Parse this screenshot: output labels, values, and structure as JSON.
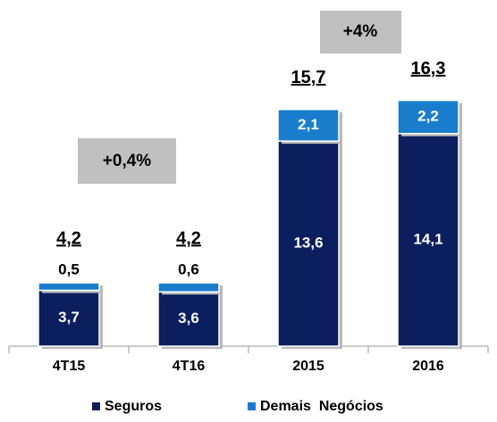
{
  "chart_data": {
    "type": "stacked_bar",
    "categories": [
      "4T15",
      "4T16",
      "2015",
      "2016"
    ],
    "series": [
      {
        "name": "Seguros",
        "color": "#0b1f5e",
        "values": [
          3.7,
          3.6,
          13.6,
          14.1
        ],
        "value_labels": [
          "3,7",
          "3,6",
          "13,6",
          "14,1"
        ]
      },
      {
        "name": "Demais  Negócios",
        "color": "#1a7dcc",
        "values": [
          0.5,
          0.6,
          2.1,
          2.2
        ],
        "value_labels": [
          "0,5",
          "0,6",
          "2,1",
          "2,2"
        ]
      }
    ],
    "totals": [
      4.2,
      4.2,
      15.7,
      16.3
    ],
    "total_labels": [
      "4,2",
      "4,2",
      "15,7",
      "16,3"
    ],
    "annotations": [
      "+0,4%",
      "+4%"
    ]
  }
}
